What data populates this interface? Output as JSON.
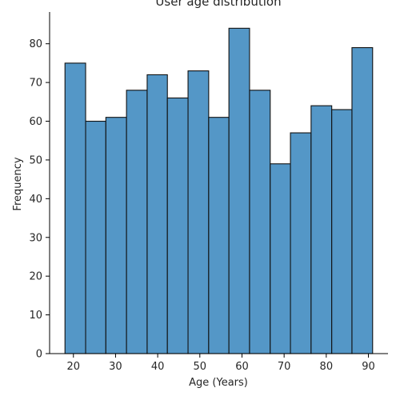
{
  "chart_data": {
    "type": "bar",
    "title": "User age distribution",
    "xlabel": "Age (Years)",
    "ylabel": "Frequency",
    "bins": [
      {
        "x0": 18.0,
        "x1": 22.9,
        "count": 75
      },
      {
        "x0": 22.9,
        "x1": 27.7,
        "count": 60
      },
      {
        "x0": 27.7,
        "x1": 32.6,
        "count": 61
      },
      {
        "x0": 32.6,
        "x1": 37.5,
        "count": 68
      },
      {
        "x0": 37.5,
        "x1": 42.3,
        "count": 72
      },
      {
        "x0": 42.3,
        "x1": 47.2,
        "count": 66
      },
      {
        "x0": 47.2,
        "x1": 52.1,
        "count": 73
      },
      {
        "x0": 52.1,
        "x1": 56.9,
        "count": 61
      },
      {
        "x0": 56.9,
        "x1": 61.8,
        "count": 84
      },
      {
        "x0": 61.8,
        "x1": 66.7,
        "count": 68
      },
      {
        "x0": 66.7,
        "x1": 71.5,
        "count": 49
      },
      {
        "x0": 71.5,
        "x1": 76.4,
        "count": 57
      },
      {
        "x0": 76.4,
        "x1": 81.3,
        "count": 64
      },
      {
        "x0": 81.3,
        "x1": 86.1,
        "count": 63
      },
      {
        "x0": 86.1,
        "x1": 91.0,
        "count": 79
      }
    ],
    "xticks": [
      20,
      30,
      40,
      50,
      60,
      70,
      80,
      90
    ],
    "yticks": [
      0,
      10,
      20,
      30,
      40,
      50,
      60,
      70,
      80
    ],
    "xlim": [
      14.35,
      94.65
    ],
    "ylim": [
      0,
      88.2
    ],
    "grid": false,
    "colors": {
      "bar": "#5497c7",
      "edge": "#111111"
    }
  }
}
